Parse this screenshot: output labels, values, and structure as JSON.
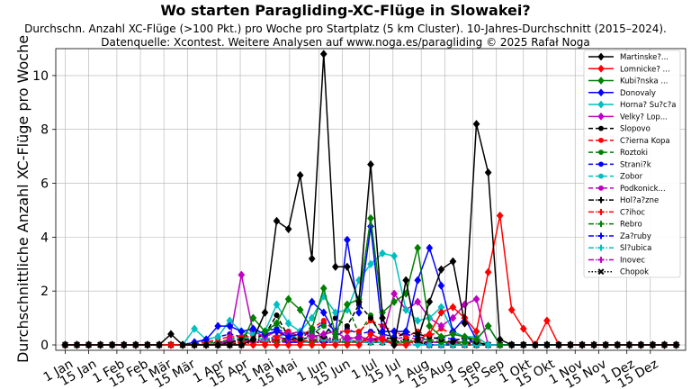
{
  "chart_data": {
    "type": "line",
    "title": "Wo starten Paragliding-XC-Flüge in Slowakei?",
    "subtitle": "Durchschn. Anzahl XC-Flüge (>100 Pkt.) pro Woche pro Startplatz (5 km Cluster). 10-Jahres-Durchschnitt (2015–2024).",
    "source": "Datenquelle: Xcontest. Weitere Analysen auf www.noga.es/paragliding © 2025 Rafał Noga",
    "ylabel": "Durchschnittliche Anzahl XC-Flüge pro Woche",
    "xlabel": "",
    "ylim": [
      -0.2,
      11
    ],
    "yticks": [
      0,
      2,
      4,
      6,
      8,
      10
    ],
    "grid": true,
    "legend_position": "top-right",
    "x_weeks": 53,
    "xticks": [
      {
        "label": "1 Jan",
        "week": 0
      },
      {
        "label": "15 Jan",
        "week": 2
      },
      {
        "label": "1 Feb",
        "week": 4.4
      },
      {
        "label": "15 Feb",
        "week": 6.4
      },
      {
        "label": "1 Mär",
        "week": 8.4
      },
      {
        "label": "15 Mär",
        "week": 10.4
      },
      {
        "label": "1 Apr",
        "week": 12.9
      },
      {
        "label": "15 Apr",
        "week": 14.9
      },
      {
        "label": "1 Mai",
        "week": 17.1
      },
      {
        "label": "15 Mai",
        "week": 19.1
      },
      {
        "label": "1 Jun",
        "week": 21.6
      },
      {
        "label": "15 Jun",
        "week": 23.6
      },
      {
        "label": "1 Jul",
        "week": 25.9
      },
      {
        "label": "15 Jul",
        "week": 27.9
      },
      {
        "label": "1 Aug",
        "week": 30.3
      },
      {
        "label": "15 Aug",
        "week": 32.3
      },
      {
        "label": "1 Sep",
        "week": 34.7
      },
      {
        "label": "15 Sep",
        "week": 36.7
      },
      {
        "label": "1 Okt",
        "week": 39.0
      },
      {
        "label": "15 Okt",
        "week": 41.0
      },
      {
        "label": "1 Nov",
        "week": 43.4
      },
      {
        "label": "15 Nov",
        "week": 45.4
      },
      {
        "label": "1 Dez",
        "week": 47.8
      },
      {
        "label": "15 Dez",
        "week": 49.8
      }
    ],
    "series": [
      {
        "name": "Martinske?...",
        "color": "#000000",
        "marker": "diamond",
        "dash": "solid",
        "values": [
          0,
          0,
          0,
          0,
          0,
          0,
          0,
          0,
          0,
          0.4,
          0,
          0,
          0,
          0,
          0,
          0,
          0.2,
          1.2,
          4.6,
          4.3,
          6.3,
          3.2,
          10.8,
          2.9,
          2.9,
          1.6,
          6.7,
          1.0,
          0.0,
          2.4,
          0.2,
          1.6,
          2.8,
          3.1,
          0.8,
          8.2,
          6.4,
          0.2,
          0,
          0,
          0,
          0,
          0,
          0,
          0,
          0,
          0,
          0,
          0,
          0,
          0,
          0,
          0
        ]
      },
      {
        "name": "Lomnicke? ...",
        "color": "#ff0000",
        "marker": "diamond",
        "dash": "solid",
        "values": [
          0,
          0,
          0,
          0,
          0,
          0,
          0,
          0,
          0,
          0,
          0,
          0,
          0,
          0,
          0,
          0,
          0,
          0,
          0,
          0,
          0,
          0,
          0,
          0,
          0,
          0,
          0.4,
          0.2,
          0,
          0,
          0.2,
          0.4,
          1.2,
          1.4,
          1.0,
          0.5,
          2.7,
          4.8,
          1.3,
          0.6,
          0,
          0.9,
          0,
          0,
          0,
          0,
          0,
          0,
          0,
          0,
          0,
          0,
          0
        ]
      },
      {
        "name": "Kubi?nska ...",
        "color": "#008000",
        "marker": "diamond",
        "dash": "solid",
        "values": [
          0,
          0,
          0,
          0,
          0,
          0,
          0,
          0,
          0,
          0,
          0,
          0,
          0,
          0,
          0,
          0,
          1.0,
          0.5,
          0.8,
          1.7,
          1.3,
          0.6,
          2.1,
          0.4,
          1.5,
          1.7,
          4.7,
          1.2,
          1.6,
          1.9,
          3.6,
          0.7,
          0.3,
          0.4,
          0.3,
          0.2,
          0.7,
          0,
          0,
          0,
          0,
          0,
          0,
          0,
          0,
          0,
          0,
          0,
          0,
          0,
          0,
          0,
          0
        ]
      },
      {
        "name": "Donovaly",
        "color": "#0000ff",
        "marker": "diamond",
        "dash": "solid",
        "values": [
          0,
          0,
          0,
          0,
          0,
          0,
          0,
          0,
          0,
          0,
          0,
          0.1,
          0.2,
          0.7,
          0.7,
          0.5,
          0.6,
          0.4,
          0.5,
          0.3,
          0.4,
          1.6,
          1.2,
          0.4,
          3.9,
          1.2,
          4.4,
          0.5,
          0.5,
          0.5,
          2.4,
          3.6,
          2.2,
          0.5,
          1.0,
          0.2,
          0.7,
          0,
          0,
          0,
          0,
          0,
          0,
          0,
          0,
          0,
          0,
          0,
          0,
          0,
          0,
          0,
          0
        ]
      },
      {
        "name": "Horna? Su?c?a",
        "color": "#00bfbf",
        "marker": "diamond",
        "dash": "solid",
        "values": [
          0,
          0,
          0,
          0,
          0,
          0,
          0,
          0,
          0,
          0,
          0,
          0.6,
          0.2,
          0.3,
          0.9,
          0.5,
          0.4,
          0.5,
          1.5,
          0.8,
          0.5,
          1.0,
          1.8,
          1.2,
          1.3,
          2.4,
          3.0,
          3.4,
          3.3,
          1.3,
          0.9,
          1.0,
          1.4,
          0.5,
          0.3,
          0.3,
          0,
          0,
          0,
          0,
          0,
          0,
          0,
          0,
          0,
          0,
          0,
          0,
          0,
          0,
          0,
          0,
          0
        ]
      },
      {
        "name": "Velky? Lop...",
        "color": "#bf00bf",
        "marker": "diamond",
        "dash": "solid",
        "values": [
          0,
          0,
          0,
          0,
          0,
          0,
          0,
          0,
          0,
          0,
          0,
          0,
          0,
          0,
          0.2,
          2.6,
          0.5,
          0.3,
          0.5,
          0.4,
          0.5,
          0.3,
          0.4,
          0.5,
          0.2,
          0.3,
          0.2,
          0.3,
          1.9,
          1.3,
          1.6,
          1.0,
          0.7,
          1.0,
          1.5,
          1.7,
          0,
          0,
          0,
          0,
          0,
          0,
          0,
          0,
          0,
          0,
          0,
          0,
          0,
          0,
          0,
          0,
          0
        ]
      },
      {
        "name": "Slopovo",
        "color": "#000000",
        "marker": "circle",
        "dash": "dashed",
        "values": [
          0,
          0,
          0,
          0,
          0,
          0,
          0,
          0,
          0,
          0,
          0,
          0,
          0,
          0,
          0.1,
          0.2,
          0.2,
          0.4,
          1.1,
          0.3,
          0.2,
          0.6,
          0.3,
          1.0,
          0.7,
          1.5,
          1.0,
          0.3,
          0.2,
          0.5,
          0.4,
          0.3,
          0.2,
          0.1,
          0.3,
          0.1,
          0,
          0,
          0,
          0,
          0,
          0,
          0,
          0,
          0,
          0,
          0,
          0,
          0,
          0,
          0,
          0,
          0
        ]
      },
      {
        "name": "C?ierna Kopa",
        "color": "#ff0000",
        "marker": "circle",
        "dash": "dashed",
        "values": [
          0,
          0,
          0,
          0,
          0,
          0,
          0,
          0,
          0,
          0,
          0,
          0,
          0.1,
          0.2,
          0.3,
          0.3,
          0.3,
          0.4,
          0.3,
          0.5,
          0.3,
          0.6,
          0.9,
          0.5,
          0.5,
          0.5,
          0.9,
          0.7,
          0.5,
          0.3,
          0.5,
          0.3,
          0.6,
          0.4,
          0.3,
          0.2,
          0,
          0,
          0,
          0,
          0,
          0,
          0,
          0,
          0,
          0,
          0,
          0,
          0,
          0,
          0,
          0,
          0
        ]
      },
      {
        "name": "Roztoki",
        "color": "#008000",
        "marker": "circle",
        "dash": "dashed",
        "values": [
          0,
          0,
          0,
          0,
          0,
          0,
          0,
          0,
          0,
          0,
          0,
          0,
          0.1,
          0.1,
          0.2,
          0.3,
          0.6,
          0.4,
          0.8,
          0.4,
          0.5,
          0.4,
          0.7,
          0.3,
          1.5,
          0.4,
          1.1,
          0.2,
          0.1,
          0.1,
          0.2,
          0.2,
          0.1,
          0.1,
          0.1,
          0.1,
          0,
          0,
          0,
          0,
          0,
          0,
          0,
          0,
          0,
          0,
          0,
          0,
          0,
          0,
          0,
          0,
          0
        ]
      },
      {
        "name": "Strani?k",
        "color": "#0000ff",
        "marker": "circle",
        "dash": "dashed",
        "values": [
          0,
          0,
          0,
          0,
          0,
          0,
          0,
          0,
          0,
          0,
          0,
          0,
          0.2,
          0.3,
          0.4,
          0.3,
          0.4,
          0.5,
          0.6,
          0.4,
          0.3,
          0.5,
          0.8,
          0.3,
          0.6,
          0.4,
          0.5,
          0.4,
          0.3,
          0.4,
          0.3,
          0.2,
          0.3,
          0.2,
          0.2,
          0.1,
          0,
          0,
          0,
          0,
          0,
          0,
          0,
          0,
          0,
          0,
          0,
          0,
          0,
          0,
          0,
          0,
          0
        ]
      },
      {
        "name": "Zobor",
        "color": "#00bfbf",
        "marker": "circle",
        "dash": "dashed",
        "values": [
          0,
          0,
          0,
          0,
          0,
          0,
          0,
          0,
          0,
          0,
          0,
          0,
          0,
          0.1,
          0.2,
          0.2,
          0.3,
          0.2,
          0.3,
          0.4,
          0.2,
          0.3,
          0.2,
          0.1,
          0.2,
          0.1,
          0.1,
          0.1,
          0.1,
          0,
          0,
          0,
          0,
          0,
          0,
          0,
          0,
          0,
          0,
          0,
          0,
          0,
          0,
          0,
          0,
          0,
          0,
          0,
          0,
          0,
          0,
          0,
          0
        ]
      },
      {
        "name": "Podkonick...",
        "color": "#bf00bf",
        "marker": "circle",
        "dash": "dashed",
        "values": [
          0,
          0,
          0,
          0,
          0,
          0,
          0,
          0,
          0,
          0,
          0,
          0,
          0,
          0,
          0.2,
          0.2,
          0.1,
          0.2,
          0.3,
          0.2,
          0.2,
          0.4,
          0.2,
          0.2,
          0.3,
          0.2,
          0.2,
          0.2,
          0.2,
          0.3,
          0.2,
          0.1,
          0.1,
          0.1,
          0.1,
          0.1,
          0,
          0,
          0,
          0,
          0,
          0,
          0,
          0,
          0,
          0,
          0,
          0,
          0,
          0,
          0,
          0,
          0
        ]
      },
      {
        "name": "Hol?a?zne",
        "color": "#000000",
        "marker": "plus",
        "dash": "dashdot",
        "values": [
          0,
          0,
          0,
          0,
          0,
          0,
          0,
          0,
          0,
          0,
          0,
          0,
          0,
          0.1,
          0.1,
          0.2,
          0.2,
          0.2,
          0.3,
          0.2,
          0.2,
          0.3,
          0.3,
          0.2,
          0.2,
          0.3,
          0.2,
          0.2,
          0.1,
          0.2,
          0.1,
          0.1,
          0.1,
          0.1,
          0.1,
          0,
          0,
          0,
          0,
          0,
          0,
          0,
          0,
          0,
          0,
          0,
          0,
          0,
          0,
          0,
          0,
          0,
          0
        ]
      },
      {
        "name": "C?ihoc",
        "color": "#ff0000",
        "marker": "plus",
        "dash": "dashdot",
        "values": [
          0,
          0,
          0,
          0,
          0,
          0,
          0,
          0,
          0,
          0,
          0,
          0,
          0,
          0,
          0.1,
          0.1,
          0.1,
          0.1,
          0.2,
          0.2,
          0.1,
          0.2,
          0.2,
          0.1,
          0.2,
          0.1,
          0.2,
          0.1,
          0.1,
          0.1,
          0.1,
          0.1,
          0.1,
          0.1,
          0,
          0,
          0,
          0,
          0,
          0,
          0,
          0,
          0,
          0,
          0,
          0,
          0,
          0,
          0,
          0,
          0,
          0,
          0
        ]
      },
      {
        "name": "Rebro",
        "color": "#008000",
        "marker": "plus",
        "dash": "dashdot",
        "values": [
          0,
          0,
          0,
          0,
          0,
          0,
          0,
          0,
          0,
          0,
          0,
          0,
          0,
          0,
          0.1,
          0.1,
          0.2,
          0.2,
          0.1,
          0.2,
          0.2,
          0.1,
          0.2,
          0.1,
          0.1,
          0.1,
          0.1,
          0.1,
          0.1,
          0.1,
          0.1,
          0.1,
          0.1,
          0,
          0,
          0,
          0,
          0,
          0,
          0,
          0,
          0,
          0,
          0,
          0,
          0,
          0,
          0,
          0,
          0,
          0,
          0,
          0
        ]
      },
      {
        "name": "Za?ruby",
        "color": "#0000ff",
        "marker": "plus",
        "dash": "dashdot",
        "values": [
          0,
          0,
          0,
          0,
          0,
          0,
          0,
          0,
          0,
          0,
          0,
          0,
          0,
          0,
          0,
          0.1,
          0.1,
          0.2,
          0.2,
          0.1,
          0.1,
          0.2,
          0.1,
          0.1,
          0.2,
          0.1,
          0.1,
          0.1,
          0.1,
          0.1,
          0.1,
          0,
          0,
          0,
          0,
          0,
          0,
          0,
          0,
          0,
          0,
          0,
          0,
          0,
          0,
          0,
          0,
          0,
          0,
          0,
          0,
          0,
          0
        ]
      },
      {
        "name": "Sl?ubica",
        "color": "#00bfbf",
        "marker": "plus",
        "dash": "dashdot",
        "values": [
          0,
          0,
          0,
          0,
          0,
          0,
          0,
          0,
          0,
          0,
          0,
          0,
          0,
          0,
          0,
          0.1,
          0.1,
          0.1,
          0.2,
          0.1,
          0.1,
          0.1,
          0.2,
          0.1,
          0.1,
          0.1,
          0.1,
          0.1,
          0.1,
          0.1,
          0,
          0,
          0,
          0,
          0,
          0,
          0,
          0,
          0,
          0,
          0,
          0,
          0,
          0,
          0,
          0,
          0,
          0,
          0,
          0,
          0,
          0,
          0
        ]
      },
      {
        "name": "Inovec",
        "color": "#bf00bf",
        "marker": "plus",
        "dash": "dashdot",
        "values": [
          0,
          0,
          0,
          0,
          0,
          0,
          0,
          0,
          0,
          0,
          0,
          0,
          0,
          0,
          0,
          0.1,
          0.1,
          0.1,
          0.1,
          0.1,
          0.1,
          0.1,
          0.1,
          0.1,
          0.1,
          0.1,
          0.1,
          0.1,
          0.1,
          0,
          0,
          0,
          0,
          0,
          0,
          0,
          0,
          0,
          0,
          0,
          0,
          0,
          0,
          0,
          0,
          0,
          0,
          0,
          0,
          0,
          0,
          0,
          0
        ]
      },
      {
        "name": "Chopok",
        "color": "#000000",
        "marker": "x",
        "dash": "dotted",
        "values": [
          0,
          0,
          0,
          0,
          0,
          0,
          0,
          0,
          0,
          0,
          0,
          0,
          0,
          0,
          0,
          0,
          0.1,
          0.1,
          0.1,
          0.1,
          0.1,
          0.1,
          0.1,
          0.1,
          0.1,
          0.1,
          0.1,
          0.1,
          0.1,
          0.1,
          0.1,
          0,
          0,
          0,
          0,
          0,
          0,
          0,
          0,
          0,
          0,
          0,
          0,
          0,
          0,
          0,
          0,
          0,
          0,
          0,
          0,
          0,
          0
        ]
      }
    ]
  }
}
